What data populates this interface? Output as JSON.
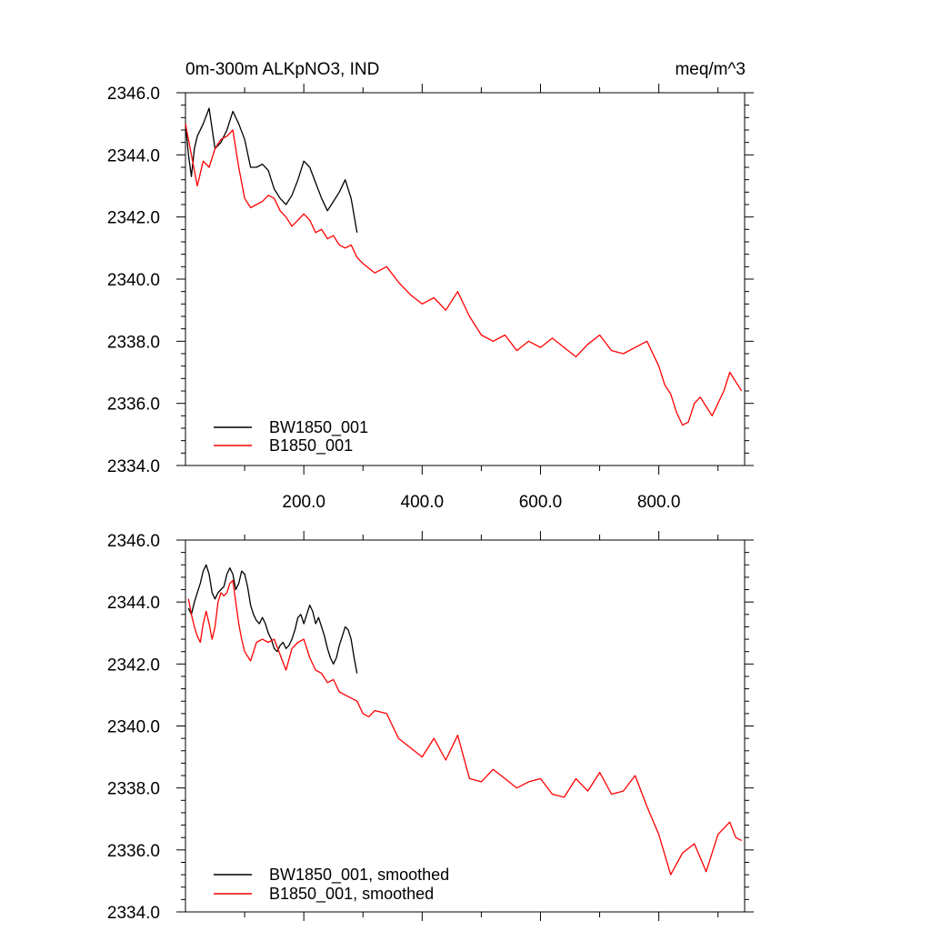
{
  "chart_data": [
    {
      "type": "line",
      "title": "0m-300m ALKpNO3, IND",
      "units": "meq/m^3",
      "xlabel": "",
      "ylabel": "",
      "xlim": [
        0,
        945
      ],
      "ylim": [
        2334.0,
        2346.0
      ],
      "x_ticks": [
        200,
        400,
        600,
        800
      ],
      "x_tick_labels": [
        "200.0",
        "400.0",
        "600.0",
        "800.0"
      ],
      "y_ticks": [
        2334,
        2336,
        2338,
        2340,
        2342,
        2344,
        2346
      ],
      "y_tick_labels": [
        "2334.0",
        "2336.0",
        "2338.0",
        "2340.0",
        "2342.0",
        "2344.0",
        "2346.0"
      ],
      "grid": false,
      "legend_position": "bottom-left",
      "series": [
        {
          "name": "BW1850_001",
          "color": "#000000",
          "x": [
            0,
            5,
            10,
            15,
            20,
            30,
            40,
            50,
            60,
            70,
            80,
            90,
            100,
            110,
            120,
            130,
            140,
            150,
            160,
            170,
            180,
            190,
            200,
            210,
            220,
            230,
            240,
            250,
            260,
            270,
            280,
            290
          ],
          "values": [
            2345.0,
            2344.0,
            2343.3,
            2344.2,
            2344.6,
            2345.0,
            2345.5,
            2344.2,
            2344.4,
            2344.8,
            2345.4,
            2345.0,
            2344.5,
            2343.6,
            2343.6,
            2343.7,
            2343.5,
            2342.9,
            2342.6,
            2342.4,
            2342.7,
            2343.2,
            2343.8,
            2343.6,
            2343.1,
            2342.6,
            2342.2,
            2342.5,
            2342.8,
            2343.2,
            2342.6,
            2341.5
          ]
        },
        {
          "name": "B1850_001",
          "color": "#ff0000",
          "x": [
            0,
            10,
            20,
            30,
            40,
            50,
            60,
            70,
            80,
            90,
            100,
            110,
            120,
            130,
            140,
            150,
            160,
            170,
            180,
            190,
            200,
            210,
            220,
            230,
            240,
            250,
            260,
            270,
            280,
            290,
            300,
            320,
            340,
            360,
            380,
            400,
            420,
            440,
            460,
            480,
            500,
            520,
            540,
            560,
            580,
            600,
            620,
            640,
            660,
            680,
            700,
            720,
            740,
            760,
            780,
            800,
            810,
            820,
            830,
            840,
            850,
            860,
            870,
            880,
            890,
            900,
            910,
            920,
            930,
            940
          ],
          "values": [
            2345.0,
            2344.0,
            2343.0,
            2343.8,
            2343.6,
            2344.2,
            2344.5,
            2344.6,
            2344.8,
            2343.6,
            2342.6,
            2342.3,
            2342.4,
            2342.5,
            2342.7,
            2342.6,
            2342.2,
            2342.0,
            2341.7,
            2341.9,
            2342.1,
            2341.9,
            2341.5,
            2341.6,
            2341.3,
            2341.4,
            2341.1,
            2341.0,
            2341.1,
            2340.7,
            2340.5,
            2340.2,
            2340.4,
            2339.9,
            2339.5,
            2339.2,
            2339.4,
            2339.0,
            2339.6,
            2338.8,
            2338.2,
            2338.0,
            2338.2,
            2337.7,
            2338.0,
            2337.8,
            2338.1,
            2337.8,
            2337.5,
            2337.9,
            2338.2,
            2337.7,
            2337.6,
            2337.8,
            2338.0,
            2337.2,
            2336.6,
            2336.3,
            2335.7,
            2335.3,
            2335.4,
            2336.0,
            2336.2,
            2335.9,
            2335.6,
            2336.0,
            2336.4,
            2337.0,
            2336.7,
            2336.4
          ]
        }
      ]
    },
    {
      "type": "line",
      "title": "",
      "xlabel": "",
      "ylabel": "",
      "xlim": [
        0,
        945
      ],
      "ylim": [
        2334.0,
        2346.0
      ],
      "x_ticks": [
        200,
        400,
        600,
        800
      ],
      "x_tick_labels": [],
      "y_ticks": [
        2334,
        2336,
        2338,
        2340,
        2342,
        2344,
        2346
      ],
      "y_tick_labels": [
        "2334.0",
        "2336.0",
        "2338.0",
        "2340.0",
        "2342.0",
        "2344.0",
        "2346.0"
      ],
      "grid": false,
      "legend_position": "bottom-left",
      "series": [
        {
          "name": "BW1850_001, smoothed",
          "color": "#000000",
          "x": [
            5,
            10,
            15,
            20,
            25,
            30,
            35,
            40,
            45,
            50,
            55,
            60,
            65,
            70,
            75,
            80,
            85,
            90,
            95,
            100,
            105,
            110,
            115,
            120,
            125,
            130,
            135,
            140,
            145,
            150,
            155,
            160,
            165,
            170,
            175,
            180,
            185,
            190,
            195,
            200,
            205,
            210,
            215,
            220,
            225,
            230,
            235,
            240,
            245,
            250,
            255,
            260,
            265,
            270,
            275,
            280,
            285,
            290
          ],
          "values": [
            2343.8,
            2343.6,
            2344.0,
            2344.3,
            2344.6,
            2345.0,
            2345.2,
            2344.9,
            2344.3,
            2344.1,
            2344.3,
            2344.4,
            2344.5,
            2344.9,
            2345.1,
            2344.9,
            2344.4,
            2344.6,
            2345.0,
            2344.9,
            2344.5,
            2343.9,
            2343.6,
            2343.4,
            2343.3,
            2343.5,
            2343.3,
            2343.0,
            2342.8,
            2342.5,
            2342.4,
            2342.6,
            2342.7,
            2342.5,
            2342.6,
            2342.8,
            2343.1,
            2343.5,
            2343.6,
            2343.3,
            2343.6,
            2343.9,
            2343.7,
            2343.3,
            2343.5,
            2343.2,
            2342.9,
            2342.5,
            2342.2,
            2342.0,
            2342.2,
            2342.6,
            2342.9,
            2343.2,
            2343.1,
            2342.8,
            2342.2,
            2341.7
          ]
        },
        {
          "name": "B1850_001, smoothed",
          "color": "#ff0000",
          "x": [
            5,
            10,
            15,
            20,
            25,
            30,
            35,
            40,
            45,
            50,
            55,
            60,
            65,
            70,
            75,
            80,
            85,
            90,
            95,
            100,
            110,
            120,
            130,
            140,
            150,
            160,
            170,
            180,
            190,
            200,
            210,
            220,
            230,
            240,
            250,
            260,
            270,
            280,
            290,
            300,
            310,
            320,
            340,
            360,
            380,
            400,
            420,
            440,
            460,
            480,
            500,
            520,
            540,
            560,
            580,
            600,
            620,
            640,
            660,
            680,
            700,
            720,
            740,
            760,
            780,
            800,
            820,
            840,
            860,
            880,
            900,
            920,
            930,
            940
          ],
          "values": [
            2344.1,
            2343.6,
            2343.2,
            2342.9,
            2342.7,
            2343.3,
            2343.7,
            2343.3,
            2342.8,
            2343.2,
            2344.0,
            2344.3,
            2344.2,
            2344.3,
            2344.6,
            2344.7,
            2344.0,
            2343.3,
            2342.8,
            2342.4,
            2342.1,
            2342.7,
            2342.8,
            2342.7,
            2342.8,
            2342.3,
            2341.8,
            2342.5,
            2342.7,
            2342.8,
            2342.2,
            2341.8,
            2341.7,
            2341.4,
            2341.5,
            2341.1,
            2341.0,
            2340.9,
            2340.8,
            2340.4,
            2340.3,
            2340.5,
            2340.4,
            2339.6,
            2339.3,
            2339.0,
            2339.6,
            2338.9,
            2339.7,
            2338.3,
            2338.2,
            2338.6,
            2338.3,
            2338.0,
            2338.2,
            2338.3,
            2337.8,
            2337.7,
            2338.3,
            2337.9,
            2338.5,
            2337.8,
            2337.9,
            2338.4,
            2337.4,
            2336.5,
            2335.2,
            2335.9,
            2336.2,
            2335.3,
            2336.5,
            2336.9,
            2336.4,
            2336.3
          ]
        }
      ]
    }
  ]
}
